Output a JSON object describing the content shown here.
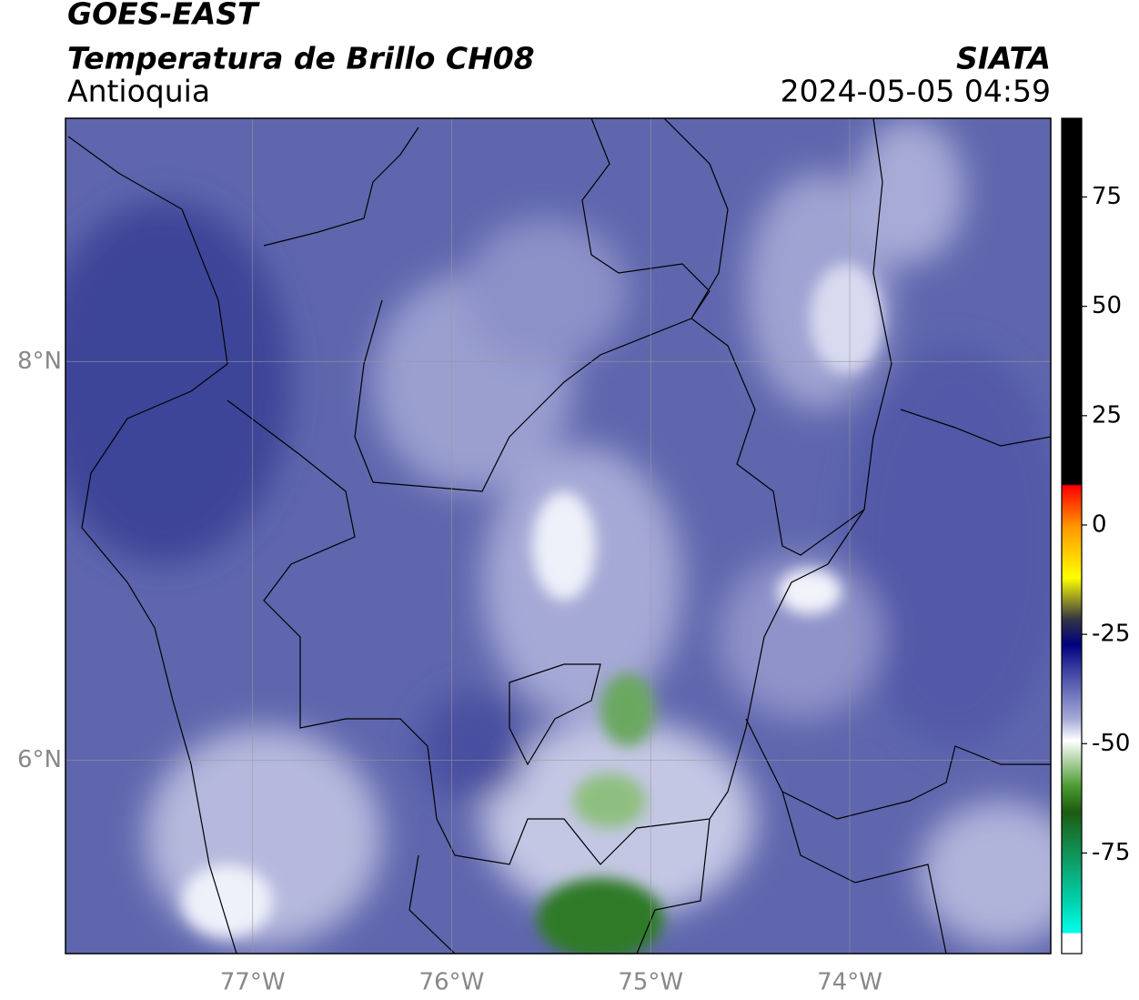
{
  "chart_data": {
    "type": "map",
    "title": "GOES-EAST",
    "subtitle": "Temperatura de Brillo CH08",
    "region": "Antioquia",
    "source": "SIATA",
    "datetime": "2024-05-05 04:59",
    "xlim": [
      -77.94,
      -72.99
    ],
    "ylim": [
      5.03,
      9.22
    ],
    "xticks": [
      {
        "value": -77,
        "label": "77°W"
      },
      {
        "value": -76,
        "label": "76°W"
      },
      {
        "value": -75,
        "label": "75°W"
      },
      {
        "value": -74,
        "label": "74°W"
      }
    ],
    "yticks": [
      {
        "value": 6,
        "label": "6°N"
      },
      {
        "value": 8,
        "label": "8°N"
      }
    ],
    "grid": true,
    "colorbar": {
      "lim": [
        -98,
        93
      ],
      "ticks": [
        75,
        50,
        25,
        0,
        -25,
        -50,
        -75
      ]
    }
  }
}
